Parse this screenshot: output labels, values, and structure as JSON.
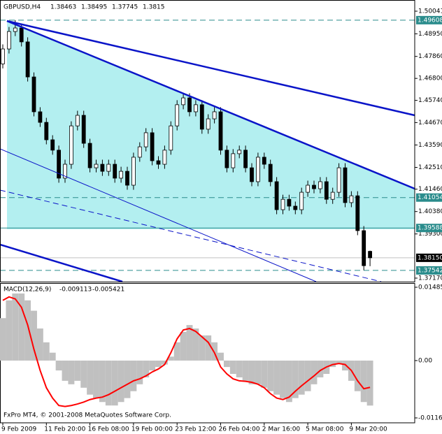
{
  "chart_data": [
    {
      "type": "candlestick",
      "title": "GBPUSD,H4",
      "categories": [
        "9 Feb 2009",
        null,
        null,
        null,
        null,
        null,
        null,
        "11 Feb 20:00",
        null,
        null,
        null,
        null,
        null,
        null,
        "16 Feb 08:00",
        null,
        null,
        null,
        null,
        null,
        null,
        "19 Feb 00:00",
        null,
        null,
        null,
        null,
        null,
        null,
        "23 Feb 12:00",
        null,
        null,
        null,
        null,
        null,
        null,
        "26 Feb 04:00",
        null,
        null,
        null,
        null,
        null,
        null,
        "2 Mar 16:00",
        null,
        null,
        null,
        null,
        null,
        null,
        "5 Mar 08:00",
        null,
        null,
        null,
        null,
        null,
        null,
        "9 Mar 20:00",
        null,
        null,
        null
      ],
      "open": [
        1.475,
        1.4822,
        1.4906,
        1.4923,
        1.4856,
        1.4687,
        1.4519,
        1.4468,
        1.4384,
        1.4334,
        1.4199,
        1.4266,
        1.4451,
        1.4502,
        1.4367,
        1.4249,
        1.4266,
        1.4232,
        1.4266,
        1.4199,
        1.4232,
        1.4165,
        1.43,
        1.435,
        1.4418,
        1.4283,
        1.4266,
        1.4334,
        1.4451,
        1.4553,
        1.4586,
        1.4519,
        1.4553,
        1.4435,
        1.4485,
        1.4519,
        1.4334,
        1.4249,
        1.4317,
        1.4334,
        1.4249,
        1.4182,
        1.43,
        1.4266,
        1.4182,
        1.4047,
        1.4097,
        1.4064,
        1.4047,
        1.4131,
        1.4165,
        1.4148,
        1.4182,
        1.4097,
        1.4131,
        1.4249,
        1.4081,
        1.4114,
        1.3946,
        1.38463
      ],
      "high": [
        1.4844,
        1.4928,
        1.4961,
        1.4945,
        1.4878,
        1.4709,
        1.4541,
        1.449,
        1.4406,
        1.4356,
        1.4288,
        1.4473,
        1.4524,
        1.4524,
        1.4389,
        1.4288,
        1.4288,
        1.4288,
        1.4288,
        1.4254,
        1.4254,
        1.4322,
        1.4372,
        1.444,
        1.444,
        1.4305,
        1.4356,
        1.4473,
        1.4575,
        1.4608,
        1.4608,
        1.4575,
        1.4575,
        1.4507,
        1.4541,
        1.4541,
        1.4356,
        1.4339,
        1.4356,
        1.4356,
        1.4271,
        1.4322,
        1.4322,
        1.4288,
        1.4204,
        1.4119,
        1.4119,
        1.4086,
        1.4153,
        1.4187,
        1.4187,
        1.4204,
        1.4204,
        1.4153,
        1.4271,
        1.4271,
        1.4136,
        1.4136,
        1.3968,
        1.38495
      ],
      "low": [
        1.4728,
        1.48,
        1.4884,
        1.4834,
        1.4665,
        1.4497,
        1.4446,
        1.4362,
        1.4312,
        1.4177,
        1.4177,
        1.4244,
        1.4429,
        1.4345,
        1.4227,
        1.4227,
        1.421,
        1.421,
        1.4177,
        1.4177,
        1.4143,
        1.4143,
        1.4278,
        1.4328,
        1.4261,
        1.4244,
        1.4244,
        1.4312,
        1.4429,
        1.4531,
        1.4497,
        1.4497,
        1.4413,
        1.4413,
        1.4463,
        1.4312,
        1.4227,
        1.4227,
        1.4295,
        1.4227,
        1.416,
        1.416,
        1.4244,
        1.416,
        1.4025,
        1.4025,
        1.4042,
        1.4025,
        1.4025,
        1.4109,
        1.4126,
        1.4126,
        1.4075,
        1.4075,
        1.4109,
        1.4059,
        1.4059,
        1.3924,
        1.3755,
        1.37745
      ],
      "close": [
        1.4822,
        1.4906,
        1.4923,
        1.4856,
        1.4687,
        1.4519,
        1.4468,
        1.4384,
        1.4334,
        1.4199,
        1.4266,
        1.4451,
        1.4502,
        1.4367,
        1.4249,
        1.4266,
        1.4232,
        1.4266,
        1.4199,
        1.4232,
        1.4165,
        1.43,
        1.435,
        1.4418,
        1.4283,
        1.4266,
        1.4334,
        1.4451,
        1.4553,
        1.4586,
        1.4519,
        1.4553,
        1.4435,
        1.4485,
        1.4519,
        1.4334,
        1.4249,
        1.4317,
        1.4334,
        1.4249,
        1.4182,
        1.43,
        1.4266,
        1.4182,
        1.4047,
        1.4097,
        1.4064,
        1.4047,
        1.4131,
        1.4165,
        1.4148,
        1.4182,
        1.4097,
        1.4131,
        1.4249,
        1.4081,
        1.4114,
        1.3946,
        1.3777,
        1.3815
      ],
      "ylim": [
        1.37,
        1.5058
      ],
      "yticks": [
        1.50041,
        {
          "value": 1.4895,
          "label": "1.48950"
        },
        {
          "value": 1.4786,
          "label": "1.47860"
        },
        {
          "value": 1.468,
          "label": "1.46800"
        },
        {
          "value": 1.4574,
          "label": "1.45740"
        },
        {
          "value": 1.4467,
          "label": "1.44670"
        },
        {
          "value": 1.4359,
          "label": "1.43590"
        },
        {
          "value": 1.4251,
          "label": "1.42510"
        },
        {
          "value": 1.4146,
          "label": "1.41460"
        },
        {
          "value": 1.4038,
          "label": "1.40380"
        },
        {
          "value": 1.393,
          "label": "1.39300"
        },
        {
          "value": 1.3717,
          "label": "1.37170"
        }
      ],
      "hlines": [
        {
          "value": 1.49608,
          "style": "dashed"
        },
        {
          "value": 1.41054,
          "style": "dashed"
        },
        {
          "value": 1.39588,
          "style": "solid"
        },
        {
          "value": 1.37542,
          "style": "dashed"
        }
      ],
      "current_price": {
        "value": 1.3815,
        "label": "1.38150"
      },
      "level_color": "#2a8c8c"
    },
    {
      "type": "macd",
      "title": "MACD(12,26,9)",
      "series": [
        {
          "type": "bar",
          "color": "#c0c0c0",
          "values": [
            0.0086,
            0.0122,
            0.0136,
            0.0136,
            0.0122,
            0.0101,
            0.0065,
            0.0037,
            0.0016,
            -0.002,
            -0.0041,
            -0.0048,
            -0.0041,
            -0.0055,
            -0.0069,
            -0.0076,
            -0.0084,
            -0.0091,
            -0.0091,
            -0.0084,
            -0.0076,
            -0.0062,
            -0.0048,
            -0.0034,
            -0.002,
            -0.0013,
            -0.0008,
            0.0008,
            0.0037,
            0.0058,
            0.0072,
            0.0065,
            0.0051,
            0.0051,
            0.0037,
            0.0016,
            -0.0013,
            -0.0027,
            -0.0034,
            -0.0041,
            -0.0048,
            -0.0048,
            -0.0055,
            -0.0062,
            -0.0069,
            -0.0076,
            -0.0084,
            -0.0076,
            -0.0069,
            -0.0062,
            -0.0048,
            -0.0034,
            -0.0027,
            -0.0013,
            -0.0006,
            -0.002,
            -0.0041,
            -0.0062,
            -0.0084,
            -0.009113
          ]
        },
        {
          "type": "line",
          "color": "#ff0000",
          "values": [
            0.0122,
            0.0129,
            0.0125,
            0.0108,
            0.0072,
            0.0023,
            -0.002,
            -0.0055,
            -0.0076,
            -0.0091,
            -0.0093,
            -0.0091,
            -0.0088,
            -0.0084,
            -0.0079,
            -0.0076,
            -0.0074,
            -0.0069,
            -0.0062,
            -0.0055,
            -0.0048,
            -0.0041,
            -0.0037,
            -0.0031,
            -0.0023,
            -0.0017,
            -0.0008,
            0.0016,
            0.0044,
            0.0062,
            0.0065,
            0.0059,
            0.0048,
            0.0037,
            0.0016,
            -0.0013,
            -0.0027,
            -0.0037,
            -0.0041,
            -0.0042,
            -0.0044,
            -0.0048,
            -0.0055,
            -0.0067,
            -0.0076,
            -0.0079,
            -0.0074,
            -0.0062,
            -0.0051,
            -0.0041,
            -0.0031,
            -0.002,
            -0.0013,
            -0.0008,
            -0.0006,
            -0.0008,
            -0.002,
            -0.0041,
            -0.0057,
            -0.005421
          ]
        }
      ],
      "ylim": [
        -0.01261,
        0.01571
      ],
      "yticks": [
        0.014857,
        {
          "value": 0,
          "label": "0.00"
        },
        -0.011615
      ]
    }
  ],
  "footer": "FxPro MT4, © 2001-2008 MetaQuotes Software Corp."
}
